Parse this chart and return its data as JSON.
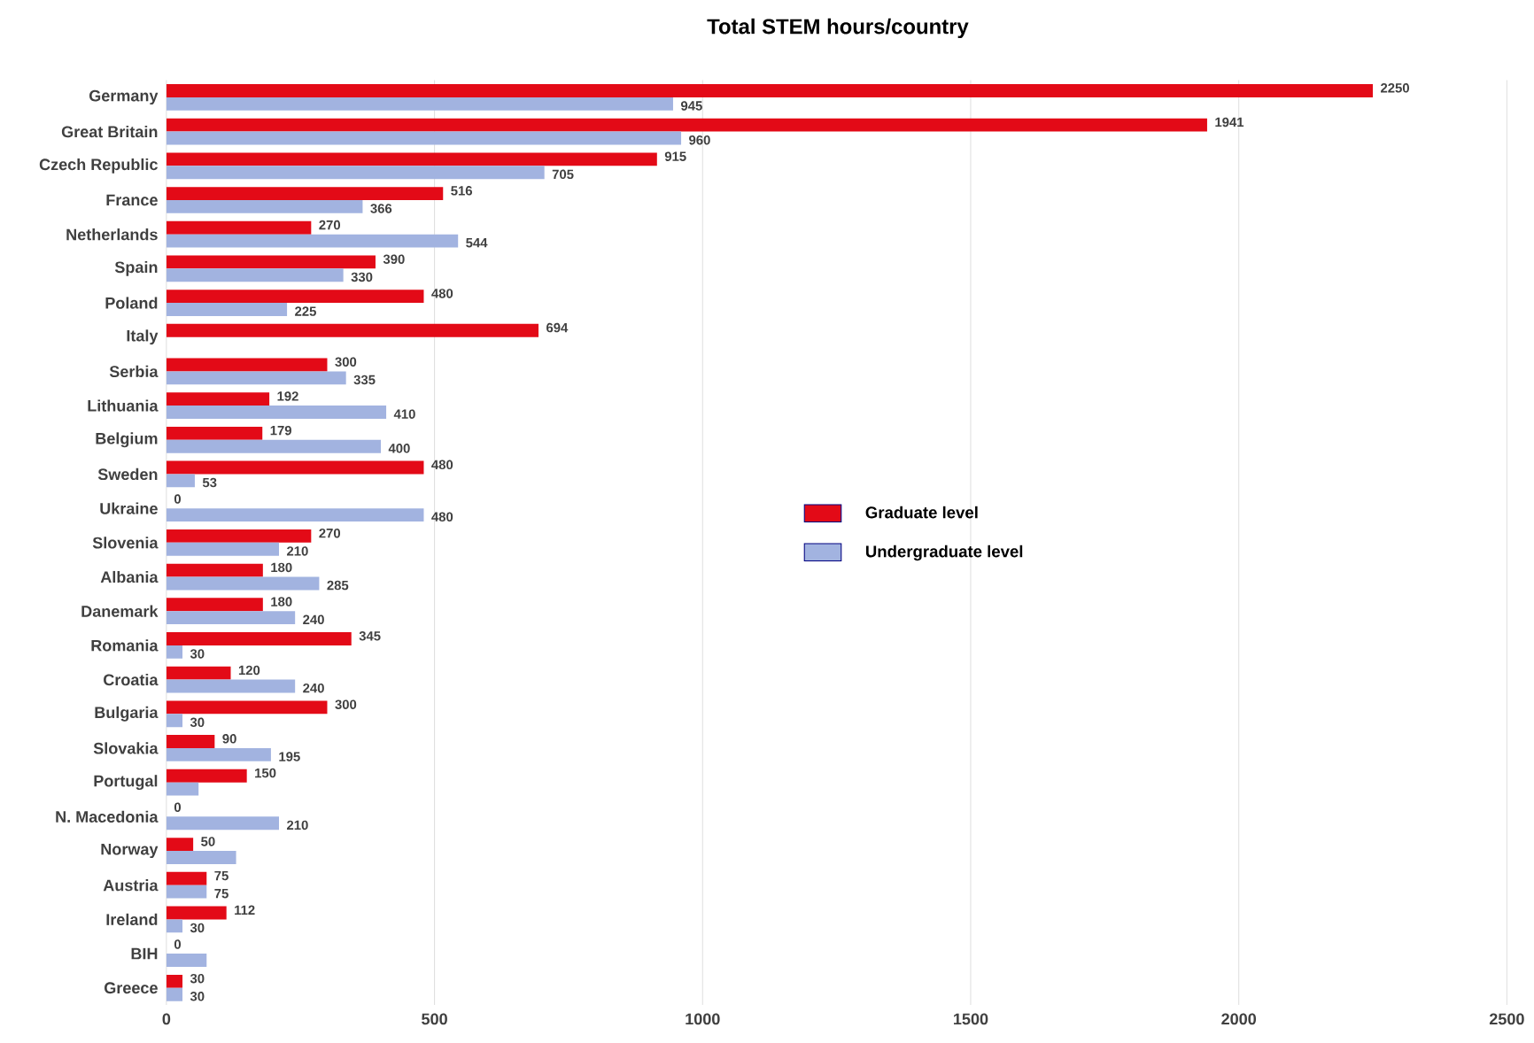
{
  "chart_data": {
    "type": "bar",
    "orientation": "horizontal",
    "title": "Total STEM hours/country",
    "categories": [
      "Germany",
      "Great Britain",
      "Czech Republic",
      "France",
      "Netherlands",
      "Spain",
      "Poland",
      "Italy",
      "Serbia",
      "Lithuania",
      "Belgium",
      "Sweden",
      "Ukraine",
      "Slovenia",
      "Albania",
      "Danemark",
      "Romania",
      "Croatia",
      "Bulgaria",
      "Slovakia",
      "Portugal",
      "N. Macedonia",
      "Norway",
      "Austria",
      "Ireland",
      "BIH",
      "Greece"
    ],
    "series": [
      {
        "name": "Graduate level",
        "color": "#e30a17",
        "values": [
          2250,
          1941,
          915,
          516,
          270,
          390,
          480,
          694,
          300,
          192,
          179,
          480,
          0,
          270,
          180,
          180,
          345,
          120,
          300,
          90,
          150,
          0,
          50,
          75,
          112,
          0,
          30
        ],
        "value_labels": [
          "2250",
          "1941",
          "915",
          "516",
          "270",
          "390",
          "480",
          "694",
          "300",
          "192",
          "179",
          "480",
          "0",
          "270",
          "180",
          "180",
          "345",
          "120",
          "300",
          "90",
          "150",
          "0",
          "50",
          "75",
          "112",
          "0",
          "30"
        ]
      },
      {
        "name": "Undergraduate level",
        "color": "#a2b3e0",
        "values": [
          945,
          960,
          705,
          366,
          544,
          330,
          225,
          null,
          335,
          410,
          400,
          53,
          480,
          210,
          285,
          240,
          30,
          240,
          30,
          195,
          60,
          210,
          130,
          75,
          30,
          75,
          30
        ],
        "value_labels": [
          "945",
          "960",
          "705",
          "366",
          "544",
          "330",
          "225",
          null,
          "335",
          "410",
          "400",
          "53",
          "480",
          "210",
          "285",
          "240",
          "30",
          "240",
          "30",
          "195",
          null,
          "210",
          null,
          "75",
          "30",
          null,
          "30"
        ]
      }
    ],
    "xlim": [
      0,
      2500
    ],
    "xticks": [
      0,
      500,
      1000,
      1500,
      2000,
      2500
    ],
    "grid": "x",
    "legend": "right"
  }
}
